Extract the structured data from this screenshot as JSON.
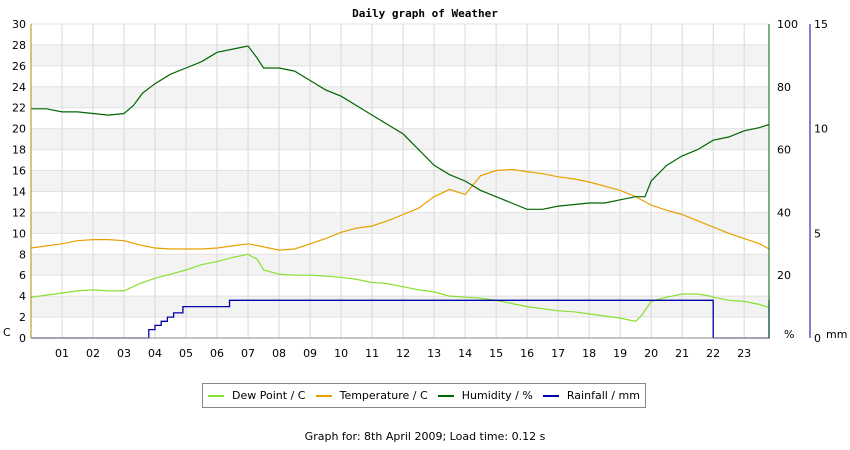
{
  "chart_data": {
    "type": "line",
    "title": "Daily graph of Weather",
    "x_ticks": [
      "01",
      "02",
      "03",
      "04",
      "05",
      "06",
      "07",
      "08",
      "09",
      "10",
      "11",
      "12",
      "13",
      "14",
      "15",
      "16",
      "17",
      "18",
      "19",
      "20",
      "21",
      "22",
      "23"
    ],
    "xlim": [
      0,
      23.8
    ],
    "left_axis": {
      "unit_label": "C",
      "ylim": [
        0,
        30
      ],
      "ticks": [
        0,
        2,
        4,
        6,
        8,
        10,
        12,
        14,
        16,
        18,
        20,
        22,
        24,
        26,
        28,
        30
      ]
    },
    "right_axis_humidity": {
      "unit_label": "%",
      "ylim": [
        0,
        100
      ],
      "ticks": [
        0,
        20,
        40,
        60,
        80,
        100
      ],
      "color": "#006600"
    },
    "right_axis_rain": {
      "unit_label": "mm",
      "ylim": [
        0,
        15
      ],
      "ticks": [
        0,
        5,
        10,
        15
      ],
      "color": "#0000aa"
    },
    "series": [
      {
        "name": "Dew Point / C",
        "axis": "left",
        "color": "#88e030",
        "x": [
          0,
          0.5,
          1,
          1.5,
          2,
          2.5,
          3,
          3.5,
          4,
          4.5,
          5,
          5.5,
          6,
          6.5,
          7,
          7.3,
          7.5,
          8,
          8.5,
          9,
          9.5,
          10,
          10.5,
          11,
          11.5,
          12,
          12.5,
          13,
          13.5,
          14,
          14.5,
          15,
          15.5,
          16,
          16.5,
          17,
          17.5,
          18,
          18.5,
          19,
          19.5,
          19.7,
          20,
          20.5,
          21,
          21.5,
          21.9,
          22,
          22.5,
          23,
          23.5,
          23.8
        ],
        "y": [
          3.9,
          4.1,
          4.3,
          4.5,
          4.6,
          4.5,
          4.5,
          5.2,
          5.7,
          6.1,
          6.5,
          7,
          7.3,
          7.7,
          8,
          7.5,
          6.5,
          6.1,
          6,
          6,
          5.9,
          5.8,
          5.6,
          5.3,
          5.2,
          4.9,
          4.6,
          4.4,
          4,
          3.9,
          3.8,
          3.6,
          3.3,
          3,
          2.8,
          2.6,
          2.5,
          2.3,
          2.1,
          1.9,
          1.6,
          2.2,
          3.5,
          3.9,
          4.2,
          4.2,
          4,
          3.9,
          3.6,
          3.5,
          3.2,
          2.9
        ]
      },
      {
        "name": "Temperature / C",
        "axis": "left",
        "color": "#e8a000",
        "x": [
          0,
          0.5,
          1,
          1.5,
          2,
          2.5,
          3,
          3.5,
          4,
          4.5,
          5,
          5.5,
          6,
          6.5,
          7,
          7.5,
          8,
          8.5,
          9,
          9.5,
          10,
          10.5,
          11,
          11.5,
          12,
          12.5,
          13,
          13.5,
          14,
          14.5,
          15,
          15.5,
          16,
          16.5,
          17,
          17.5,
          18,
          18.5,
          19,
          19.5,
          20,
          20.5,
          21,
          21.5,
          22,
          22.5,
          23,
          23.5,
          23.8
        ],
        "y": [
          8.6,
          8.8,
          9,
          9.3,
          9.4,
          9.4,
          9.3,
          8.9,
          8.6,
          8.5,
          8.5,
          8.5,
          8.6,
          8.8,
          9,
          8.7,
          8.4,
          8.5,
          9,
          9.5,
          10.1,
          10.5,
          10.7,
          11.2,
          11.8,
          12.4,
          13.5,
          14.2,
          13.7,
          15.5,
          16,
          16.1,
          15.9,
          15.7,
          15.4,
          15.2,
          14.9,
          14.5,
          14.1,
          13.5,
          12.7,
          12.2,
          11.8,
          11.2,
          10.6,
          10,
          9.5,
          9,
          8.5
        ]
      },
      {
        "name": "Humidity / %",
        "axis": "right_humidity",
        "color": "#006600",
        "x": [
          0,
          0.5,
          1,
          1.5,
          2,
          2.5,
          3,
          3.3,
          3.6,
          4,
          4.5,
          5,
          5.5,
          6,
          6.5,
          7,
          7.3,
          7.5,
          8,
          8.5,
          9,
          9.5,
          10,
          10.5,
          11,
          11.5,
          12,
          12.5,
          13,
          13.5,
          14,
          14.5,
          15,
          15.5,
          16,
          16.5,
          17,
          17.5,
          18,
          18.5,
          19,
          19.5,
          19.8,
          20,
          20.5,
          21,
          21.5,
          22,
          22.5,
          23,
          23.5,
          23.8
        ],
        "y": [
          73,
          73,
          72,
          72,
          71.5,
          71,
          71.5,
          74,
          78,
          81,
          84,
          86,
          88,
          91,
          92,
          93,
          89,
          86,
          86,
          85,
          82,
          79,
          77,
          74,
          71,
          68,
          65,
          60,
          55,
          52,
          50,
          47,
          45,
          43,
          41,
          41,
          42,
          42.5,
          43,
          43,
          44,
          45,
          45,
          50,
          55,
          58,
          60,
          63,
          64,
          66,
          67,
          68
        ]
      },
      {
        "name": "Rainfall / mm",
        "axis": "right_rain",
        "color": "#0000aa",
        "x": [
          0,
          3.6,
          3.8,
          4.0,
          4.2,
          4.4,
          4.6,
          4.9,
          5.1,
          6.2,
          6.4,
          7,
          21.8,
          21.9,
          22,
          23.3,
          23.7,
          23.8
        ],
        "y": [
          0,
          0,
          0.4,
          0.6,
          0.8,
          1.0,
          1.2,
          1.5,
          1.5,
          1.5,
          1.8,
          1.8,
          1.8,
          1.8,
          0,
          0,
          0,
          1.8
        ]
      }
    ],
    "grid": true,
    "legend_position": "bottom"
  },
  "footer": "Graph for: 8th April 2009; Load time: 0.12 s"
}
